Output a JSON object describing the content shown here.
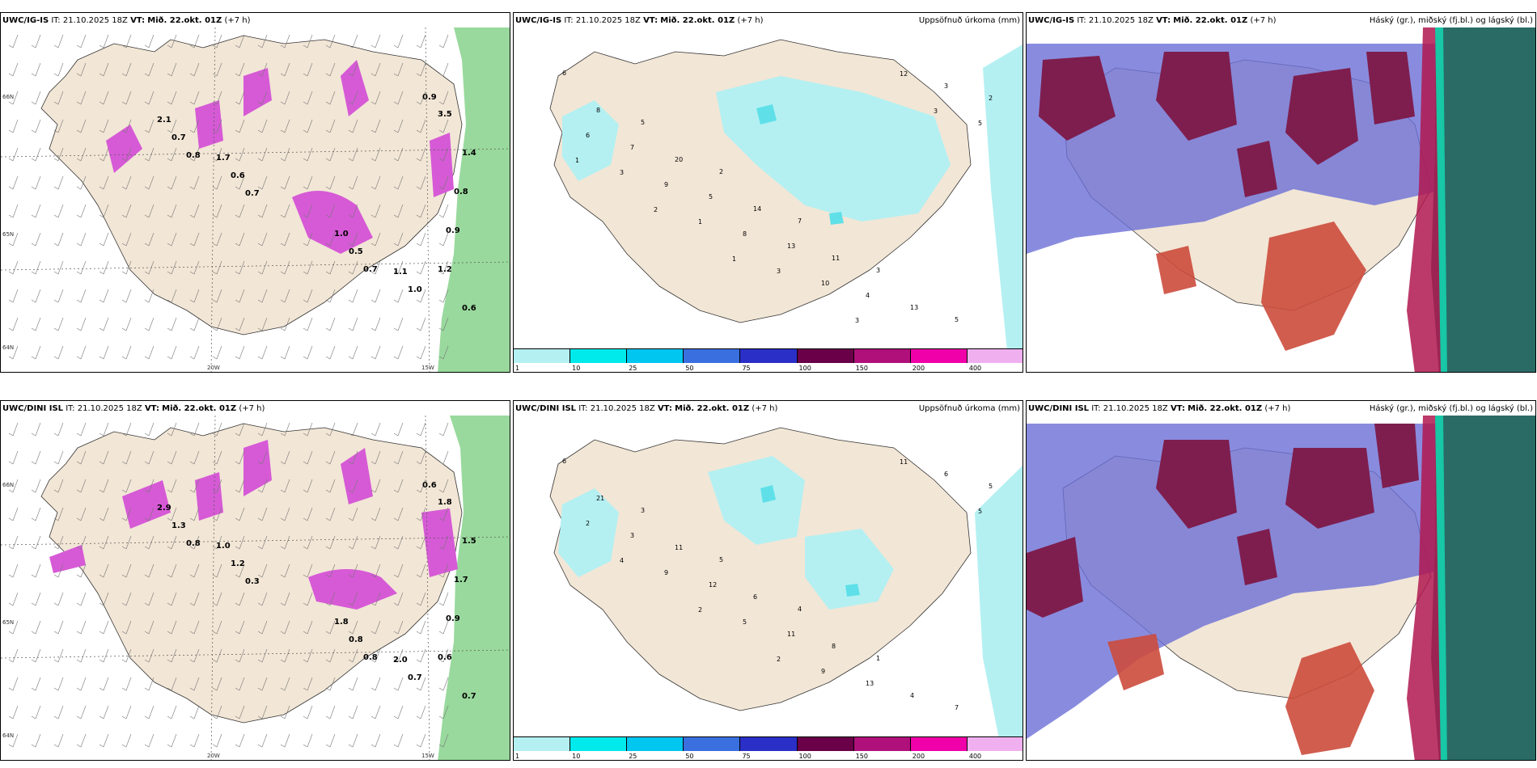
{
  "colors": {
    "land": "#f2e6d6",
    "sea": "#ffffff",
    "precip_light": "#b4f0f2",
    "precip_mid": "#5fe0e8",
    "magenta": "#d65ad6",
    "green": "#7fcf84",
    "cloud_high": "#6b6fd6",
    "cloud_mid": "#7e1e4e",
    "cloud_low": "#cc4b3c",
    "dark_teal": "#2a6b66"
  },
  "rows": [
    {
      "model": "UWC/IG-IS",
      "it_label": "IT:",
      "it_value": "21.10.2025 18Z",
      "vt_label": "VT:",
      "vt_value": "Mið. 22.okt. 01Z",
      "lead": "(+7 h)",
      "panel1": {
        "lat_labels": [
          "66N",
          "65N",
          "64N"
        ],
        "lon_labels": [
          "20W",
          "15W"
        ],
        "values": [
          "3.5",
          "2.1",
          "1.7",
          "1.4",
          "1.0",
          "1.1",
          "0.8",
          "0.7",
          "0.6",
          "0.9",
          "0.5",
          "1.0",
          "1.2",
          "0.8",
          "0.7",
          "0.6",
          "0.7",
          "0.9"
        ]
      },
      "panel2": {
        "right_label": "Uppsöfnuð úrkoma (mm)",
        "values": [
          "6",
          "5",
          "2",
          "7",
          "3",
          "5",
          "8",
          "20",
          "14",
          "11",
          "13",
          "2",
          "7",
          "5",
          "13",
          "4",
          "3",
          "6",
          "9",
          "8",
          "10",
          "12",
          "5",
          "3",
          "1",
          "3",
          "3",
          "3",
          "1",
          "2",
          "1"
        ]
      },
      "panel3": {
        "right_label": "Háský (gr.), miðský (fj.bl.) og lágský (bl.)"
      }
    },
    {
      "model": "UWC/DINI ISL",
      "it_label": "IT:",
      "it_value": "21.10.2025 18Z",
      "vt_label": "VT:",
      "vt_value": "Mið. 22.okt. 01Z",
      "lead": "(+7 h)",
      "panel1": {
        "lat_labels": [
          "66N",
          "65N",
          "64N"
        ],
        "lon_labels": [
          "20W",
          "15W"
        ],
        "values": [
          "1.8",
          "2.9",
          "1.0",
          "1.5",
          "1.8",
          "2.0",
          "1.7",
          "1.3",
          "1.2",
          "0.9",
          "0.8",
          "0.7",
          "0.6",
          "0.8",
          "0.3",
          "0.7",
          "0.8",
          "0.6"
        ]
      },
      "panel2": {
        "right_label": "Uppsöfnuð úrkoma (mm)",
        "values": [
          "6",
          "3",
          "5",
          "4",
          "1",
          "7",
          "21",
          "11",
          "6",
          "8",
          "4",
          "5",
          "3",
          "12",
          "11",
          "13",
          "6",
          "2",
          "9",
          "5",
          "9",
          "11",
          "5",
          "4",
          "2",
          "2"
        ]
      },
      "panel3": {
        "right_label": "Háský (gr.), miðský (fj.bl.) og lágský (bl.)"
      }
    }
  ],
  "colorbar": {
    "ticks": [
      "1",
      "10",
      "25",
      "50",
      "75",
      "100",
      "150",
      "200",
      "400"
    ],
    "colors": [
      "#b4f0f2",
      "#00eaec",
      "#00c6f0",
      "#3a6fe0",
      "#2a2fc8",
      "#6a0048",
      "#b0107a",
      "#f000a8",
      "#f0b0f0"
    ]
  }
}
